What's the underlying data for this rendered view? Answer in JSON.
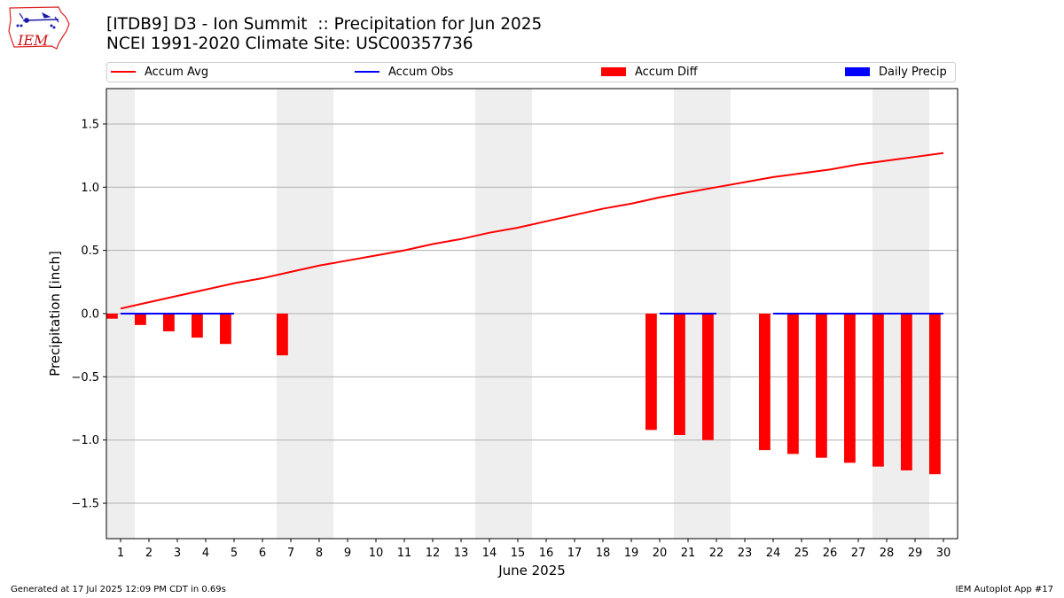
{
  "header": {
    "title_line1": "[ITDB9] D3 - Ion Summit  :: Precipitation for Jun 2025",
    "title_line2": "NCEI 1991-2020 Climate Site: USC00357736",
    "logo_text": "IEM"
  },
  "footer": {
    "generated": "Generated at 17 Jul 2025 12:09 PM CDT in 0.69s",
    "app": "IEM Autoplot App #17"
  },
  "chart_data": {
    "type": "bar",
    "xlabel": "June 2025",
    "ylabel": "Precipitation [inch]",
    "xlim": [
      0.5,
      30.5
    ],
    "ylim": [
      -1.78,
      1.78
    ],
    "yticks": [
      -1.5,
      -1.0,
      -0.5,
      0.0,
      0.5,
      1.0,
      1.5
    ],
    "ytick_labels": [
      "−1.5",
      "−1.0",
      "−0.5",
      "0.0",
      "0.5",
      "1.0",
      "1.5"
    ],
    "xticks": [
      1,
      2,
      3,
      4,
      5,
      6,
      7,
      8,
      9,
      10,
      11,
      12,
      13,
      14,
      15,
      16,
      17,
      18,
      19,
      20,
      21,
      22,
      23,
      24,
      25,
      26,
      27,
      28,
      29,
      30
    ],
    "grid": "horizontal",
    "legend_placement": "top",
    "weekend_shading": [
      [
        0.5,
        1.5
      ],
      [
        6.5,
        8.5
      ],
      [
        13.5,
        15.5
      ],
      [
        20.5,
        22.5
      ],
      [
        27.5,
        29.5
      ]
    ],
    "legend": [
      {
        "label": "Accum Avg",
        "kind": "line",
        "color": "#ff0000"
      },
      {
        "label": "Accum Obs",
        "kind": "line",
        "color": "#0000ff"
      },
      {
        "label": "Accum Diff",
        "kind": "bar",
        "color": "#ff0000"
      },
      {
        "label": "Daily Precip",
        "kind": "bar",
        "color": "#0000ff"
      }
    ],
    "series": [
      {
        "name": "Accum Avg",
        "kind": "line",
        "color": "#ff0000",
        "x": [
          1,
          2,
          3,
          4,
          5,
          6,
          7,
          8,
          9,
          10,
          11,
          12,
          13,
          14,
          15,
          16,
          17,
          18,
          19,
          20,
          21,
          22,
          23,
          24,
          25,
          26,
          27,
          28,
          29,
          30
        ],
        "values": [
          0.04,
          0.09,
          0.14,
          0.19,
          0.24,
          0.28,
          0.33,
          0.38,
          0.42,
          0.46,
          0.5,
          0.55,
          0.59,
          0.64,
          0.68,
          0.73,
          0.78,
          0.83,
          0.87,
          0.92,
          0.96,
          1.0,
          1.04,
          1.08,
          1.11,
          1.14,
          1.18,
          1.21,
          1.24,
          1.27
        ]
      },
      {
        "name": "Accum Obs",
        "kind": "line",
        "color": "#0000ff",
        "segments": [
          {
            "x": [
              1,
              2,
              3,
              4,
              5
            ],
            "values": [
              0,
              0,
              0,
              0,
              0
            ]
          },
          {
            "x": [
              20,
              21,
              22
            ],
            "values": [
              0,
              0,
              0
            ]
          },
          {
            "x": [
              24,
              25,
              26,
              27,
              28,
              29,
              30
            ],
            "values": [
              0,
              0,
              0,
              0,
              0,
              0,
              0
            ]
          }
        ]
      },
      {
        "name": "Accum Diff",
        "kind": "bar",
        "color": "#ff0000",
        "x": [
          1,
          2,
          3,
          4,
          5,
          7,
          20,
          21,
          22,
          24,
          25,
          26,
          27,
          28,
          29,
          30
        ],
        "values": [
          -0.04,
          -0.09,
          -0.14,
          -0.19,
          -0.24,
          -0.33,
          -0.92,
          -0.96,
          -1.0,
          -1.08,
          -1.11,
          -1.14,
          -1.18,
          -1.21,
          -1.24,
          -1.27
        ]
      },
      {
        "name": "Daily Precip",
        "kind": "bar",
        "color": "#0000ff",
        "x": [],
        "values": []
      }
    ]
  }
}
